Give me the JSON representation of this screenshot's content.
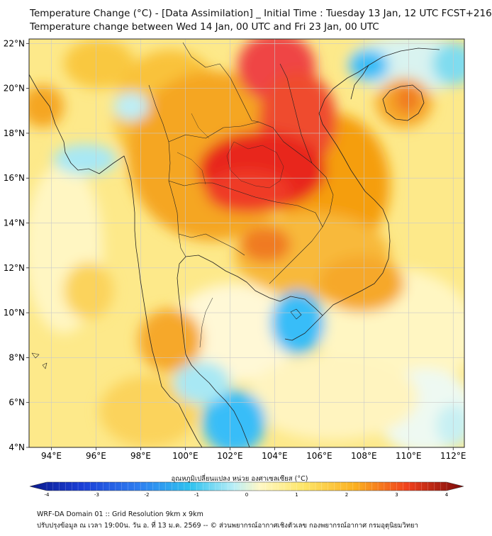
{
  "header": {
    "title_line1": "Temperature Change (°C) - [Data Assimilation] _ Initial Time : Tuesday 13 Jan, 12 UTC FCST+216",
    "title_line2": "Temperature change between Wed 14 Jan, 00 UTC and Fri 23 Jan, 00 UTC"
  },
  "map": {
    "lat_ticks": [
      "22°N",
      "20°N",
      "18°N",
      "16°N",
      "14°N",
      "12°N",
      "10°N",
      "8°N",
      "6°N",
      "4°N"
    ],
    "lon_ticks": [
      "94°E",
      "96°E",
      "98°E",
      "100°E",
      "102°E",
      "104°E",
      "106°E",
      "108°E",
      "110°E",
      "112°E"
    ],
    "lat_range": [
      4,
      22.2
    ],
    "lon_range": [
      93,
      112.5
    ],
    "grid": true,
    "colors": {
      "sea_base": "#fdf3a8",
      "warm": "#fcd34d",
      "warmer": "#f59e0b",
      "hot": "#ef4444",
      "hottest": "#e11d1d",
      "cool": "#9be7f4",
      "cold": "#38bdf8",
      "coast": "#222222"
    }
  },
  "colorbar": {
    "label": "อุณหภูมิเปลี่ยนแปลง หน่วย องศาเซลเซียส (°C)",
    "ticks": [
      "-4",
      "-3",
      "-2",
      "-1",
      "0",
      "1",
      "2",
      "3",
      "4"
    ],
    "range": [
      -4,
      4
    ]
  },
  "footer": {
    "line1": "WRF-DA Domain 01 :: Grid Resolution 9km x 9km",
    "line2": "ปรับปรุงข้อมูล ณ เวลา 19:00น. วัน อ. ที่ 13 ม.ค. 2569 -- © ส่วนพยากรณ์อากาศเชิงตัวเลข กองพยากรณ์อากาศ กรมอุตุนิยมวิทยา"
  }
}
